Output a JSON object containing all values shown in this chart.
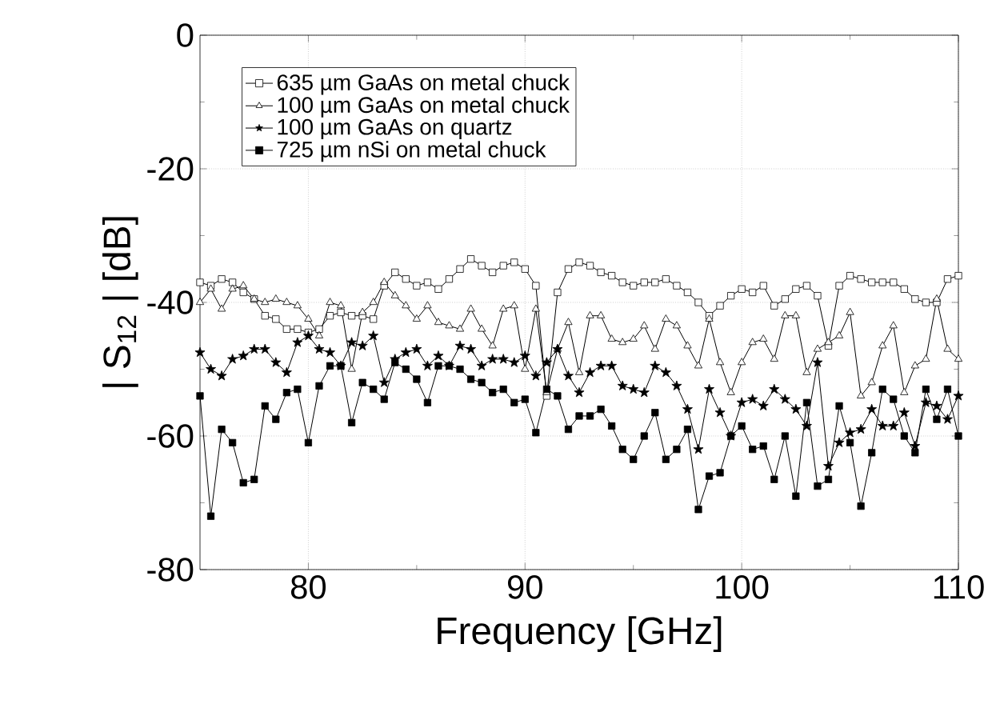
{
  "chart_data": {
    "type": "line",
    "xlabel": "Frequency  [GHz]",
    "ylabel": "| S$_{12}$ |   [dB]",
    "xlim": [
      75,
      110
    ],
    "ylim": [
      -80,
      0
    ],
    "xticks": [
      80,
      90,
      100,
      110
    ],
    "yticks": [
      -80,
      -60,
      -40,
      -20,
      0
    ],
    "grid": true,
    "legend": "top left",
    "line_style": "solid",
    "x": [
      75,
      75.5,
      76,
      76.5,
      77,
      77.5,
      78,
      78.5,
      79,
      79.5,
      80,
      80.5,
      81,
      81.5,
      82,
      82.5,
      83,
      83.5,
      84,
      84.5,
      85,
      85.5,
      86,
      86.5,
      87,
      87.5,
      88,
      88.5,
      89,
      89.5,
      90,
      90.5,
      91,
      91.5,
      92,
      92.5,
      93,
      93.5,
      94,
      94.5,
      95,
      95.5,
      96,
      96.5,
      97,
      97.5,
      98,
      98.5,
      99,
      99.5,
      100,
      100.5,
      101,
      101.5,
      102,
      102.5,
      103,
      103.5,
      104,
      104.5,
      105,
      105.5,
      106,
      106.5,
      107,
      107.5,
      108,
      108.5,
      109,
      109.5,
      110
    ],
    "series": [
      {
        "name": "635 µm GaAs on metal chuck",
        "color": "#000000",
        "marker": "square",
        "values": [
          -37,
          -37.5,
          -36.5,
          -37,
          -38.5,
          -39.5,
          -42,
          -42.5,
          -44,
          -44,
          -44.5,
          -44,
          -42,
          -41.5,
          -42,
          -42,
          -42.5,
          -37.5,
          -35.5,
          -36.5,
          -37.5,
          -37,
          -38,
          -36.5,
          -35,
          -33.5,
          -34.5,
          -35.5,
          -34.5,
          -34,
          -35,
          -37.5,
          -54,
          -38.5,
          -35,
          -34,
          -34.5,
          -35.5,
          -36,
          -37,
          -37.5,
          -37,
          -37,
          -36.5,
          -37.5,
          -38.5,
          -40,
          -42,
          -40.5,
          -39,
          -38,
          -38.5,
          -37.5,
          -40.5,
          -39.5,
          -38,
          -37.5,
          -39,
          -46.5,
          -37.5,
          -36,
          -36.5,
          -37,
          -37,
          -37,
          -38,
          -39.5,
          -40,
          -40,
          -36.5,
          -36
        ]
      },
      {
        "name": "100 µm GaAs on metal chuck",
        "color": "#000000",
        "marker": "triangle",
        "values": [
          -40,
          -38,
          -41,
          -38,
          -37.5,
          -39.5,
          -40,
          -39.5,
          -40,
          -40.5,
          -42.5,
          -45,
          -40,
          -40.5,
          -50,
          -41.5,
          -40,
          -37,
          -39,
          -40.5,
          -42.5,
          -40.5,
          -43,
          -43.5,
          -44,
          -41,
          -44,
          -46.5,
          -41,
          -40.5,
          -50,
          -41,
          -53.5,
          -47,
          -43,
          -50.5,
          -42,
          -42,
          -45.5,
          -46,
          -45.5,
          -43.5,
          -47,
          -42.5,
          -43.5,
          -46.5,
          -49.5,
          -42.5,
          -49,
          -53.5,
          -49,
          -46,
          -45.5,
          -48.5,
          -42,
          -42,
          -50.5,
          -47,
          -46,
          -45,
          -41.5,
          -54,
          -52,
          -46.5,
          -43.5,
          -53.5,
          -49.5,
          -48.5,
          -39.5,
          -47,
          -48.5
        ]
      },
      {
        "name": "100 µm GaAs on quartz",
        "color": "#000000",
        "marker": "star",
        "values": [
          -47.5,
          -50,
          -51,
          -48.5,
          -48,
          -47,
          -47,
          -49,
          -50.5,
          -46,
          -45,
          -47,
          -47.5,
          -49.5,
          -46,
          -46.5,
          -45,
          -52,
          -48.5,
          -47.5,
          -47,
          -49.5,
          -48,
          -49.5,
          -46.5,
          -47,
          -49.5,
          -48.5,
          -48.5,
          -49,
          -48,
          -51,
          -49,
          -47,
          -51,
          -53.5,
          -50.5,
          -49.5,
          -49.5,
          -52.5,
          -53,
          -53.5,
          -49.5,
          -50.5,
          -52.5,
          -56,
          -62,
          -53,
          -56.5,
          -60,
          -55,
          -54.5,
          -55.5,
          -53,
          -54.5,
          -56,
          -58.5,
          -49,
          -64.5,
          -61,
          -59.5,
          -59,
          -56,
          -58.5,
          -58.5,
          -56.5,
          -61.5,
          -55,
          -55.5,
          -57.5,
          -54
        ]
      },
      {
        "name": "725 µm nSi on metal chuck",
        "color": "#000000",
        "marker": "square",
        "values": [
          -54,
          -72,
          -59,
          -61,
          -67,
          -66.5,
          -55.5,
          -57.5,
          -53.5,
          -53,
          -61,
          -52.5,
          -49.5,
          -49.5,
          -58,
          -52,
          -53,
          -54.5,
          -49,
          -50,
          -51.5,
          -55,
          -49.5,
          -49.5,
          -50,
          -51.5,
          -52,
          -53.5,
          -53,
          -55,
          -54.5,
          -59.5,
          -53,
          -54,
          -59,
          -57,
          -57,
          -56,
          -58.5,
          -62,
          -63.5,
          -60,
          -56.5,
          -63.5,
          -62,
          -59,
          -71,
          -66,
          -65.5,
          -60,
          -58.5,
          -62,
          -61.5,
          -66.5,
          -60,
          -69,
          -55,
          -67.5,
          -66.5,
          -55.5,
          -61,
          -70.5,
          -62.5,
          -53,
          -54.5,
          -60,
          -62.5,
          -53,
          -57.5,
          -53,
          -60
        ]
      }
    ]
  }
}
